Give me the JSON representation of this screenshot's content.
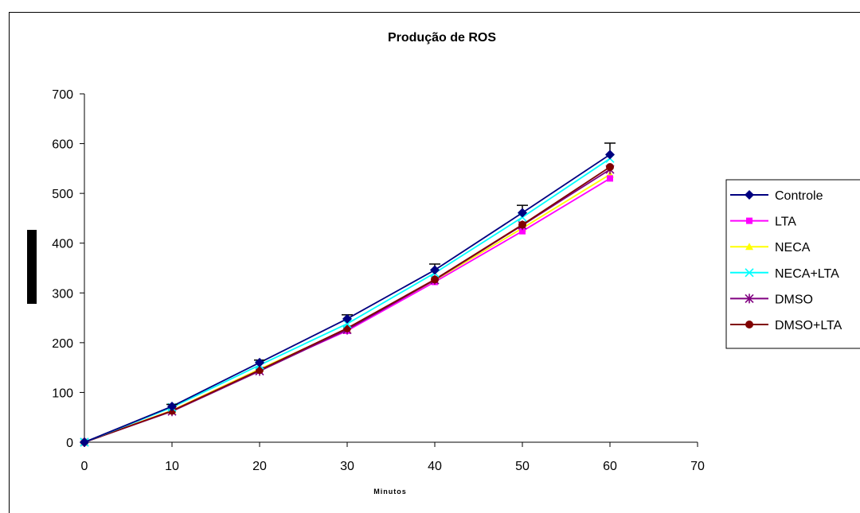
{
  "chart_data": {
    "type": "line",
    "title": "Produção de ROS",
    "xlabel": "Minutos",
    "ylabel": "",
    "xlim": [
      0,
      70
    ],
    "ylim": [
      0,
      700
    ],
    "xticks": [
      0,
      10,
      20,
      30,
      40,
      50,
      60,
      70
    ],
    "yticks": [
      0,
      100,
      200,
      300,
      400,
      500,
      600,
      700
    ],
    "x": [
      0,
      10,
      20,
      30,
      40,
      50,
      60
    ],
    "grid": false,
    "legend_position": "right",
    "series": [
      {
        "name": "Controle",
        "color": "#000080",
        "marker": "diamond",
        "values": [
          0,
          72,
          160,
          248,
          346,
          461,
          578
        ],
        "error_top": [
          0,
          4,
          5,
          8,
          12,
          15,
          23
        ]
      },
      {
        "name": "LTA",
        "color": "#ff00ff",
        "marker": "square",
        "values": [
          0,
          63,
          145,
          224,
          322,
          424,
          530
        ]
      },
      {
        "name": "NECA",
        "color": "#ffff00",
        "marker": "triangle",
        "values": [
          0,
          64,
          147,
          227,
          325,
          430,
          538
        ]
      },
      {
        "name": "NECA+LTA",
        "color": "#00ffff",
        "marker": "x",
        "values": [
          0,
          70,
          155,
          238,
          340,
          452,
          570
        ]
      },
      {
        "name": "DMSO",
        "color": "#800080",
        "marker": "asterisk",
        "values": [
          0,
          62,
          143,
          226,
          326,
          436,
          548
        ]
      },
      {
        "name": "DMSO+LTA",
        "color": "#800000",
        "marker": "circle",
        "values": [
          0,
          63,
          145,
          229,
          327,
          437,
          553
        ]
      }
    ]
  }
}
